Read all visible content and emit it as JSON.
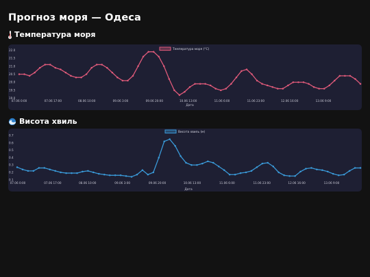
{
  "page": {
    "title": "Прогноз моря — Одеса"
  },
  "sections": {
    "temperature": {
      "heading": "Температура моря",
      "icon": "thermometer-icon"
    },
    "waves": {
      "heading": "Висота хвиль",
      "icon": "water-wave-icon"
    }
  },
  "colors": {
    "temperature_line": "#e05a7a",
    "wave_line": "#3a9ad9",
    "card_background": "#1e1f33",
    "page_background": "#121212"
  },
  "chart_data": [
    {
      "type": "line",
      "series": [
        {
          "name": "Температура моря (°C)",
          "values": [
            20.5,
            20.5,
            20.4,
            20.6,
            20.9,
            21.1,
            21.1,
            20.9,
            20.8,
            20.6,
            20.4,
            20.3,
            20.3,
            20.5,
            20.9,
            21.1,
            21.1,
            20.9,
            20.6,
            20.3,
            20.1,
            20.1,
            20.4,
            21.0,
            21.6,
            21.9,
            21.9,
            21.6,
            21.0,
            20.2,
            19.5,
            19.2,
            19.4,
            19.7,
            19.9,
            19.9,
            19.9,
            19.8,
            19.6,
            19.5,
            19.6,
            19.9,
            20.3,
            20.7,
            20.8,
            20.5,
            20.1,
            19.9,
            19.8,
            19.7,
            19.6,
            19.6,
            19.8,
            20.0,
            20.0,
            20.0,
            19.9,
            19.7,
            19.6,
            19.6,
            19.8,
            20.1,
            20.4,
            20.4,
            20.4,
            20.2,
            19.9
          ]
        }
      ],
      "xlabel": "Дата",
      "ylabel": "",
      "ylim": [
        18.9,
        22.1
      ],
      "yticks": [
        "22.0",
        "21.5",
        "21.0",
        "20.5",
        "20.0",
        "19.5",
        "19.0"
      ],
      "xticks": [
        "07.06 0:00",
        "07.06 17:00",
        "08.06 10:00",
        "09.06 3:00",
        "09.06 20:00",
        "10.06 13:00",
        "11.06 6:00",
        "11.06 23:00",
        "12.06 16:00",
        "13.06 9:00"
      ],
      "grid": false,
      "legend": "top-center"
    },
    {
      "type": "line",
      "series": [
        {
          "name": "Висота хвиль (м)",
          "values": [
            0.27,
            0.24,
            0.22,
            0.22,
            0.26,
            0.26,
            0.24,
            0.22,
            0.2,
            0.19,
            0.19,
            0.19,
            0.21,
            0.22,
            0.2,
            0.18,
            0.17,
            0.16,
            0.16,
            0.16,
            0.15,
            0.14,
            0.17,
            0.23,
            0.17,
            0.2,
            0.4,
            0.62,
            0.65,
            0.56,
            0.42,
            0.33,
            0.3,
            0.3,
            0.32,
            0.35,
            0.33,
            0.28,
            0.23,
            0.17,
            0.17,
            0.19,
            0.2,
            0.22,
            0.27,
            0.32,
            0.33,
            0.28,
            0.2,
            0.16,
            0.15,
            0.15,
            0.21,
            0.25,
            0.26,
            0.24,
            0.23,
            0.21,
            0.18,
            0.16,
            0.17,
            0.22,
            0.26,
            0.26
          ]
        }
      ],
      "xlabel": "Дата",
      "ylabel": "",
      "ylim": [
        0.07,
        0.72
      ],
      "yticks": [
        "0.7",
        "0.6",
        "0.5",
        "0.4",
        "0.3",
        "0.2",
        "0.1"
      ],
      "xticks": [
        "07.06 0:00",
        "07.06 17:00",
        "08.06 10:00",
        "09.06 3:00",
        "09.06 20:00",
        "10.06 13:00",
        "11.06 6:00",
        "11.06 23:00",
        "12.06 16:00",
        "13.06 9:00"
      ],
      "grid": false,
      "legend": "top-center"
    }
  ]
}
